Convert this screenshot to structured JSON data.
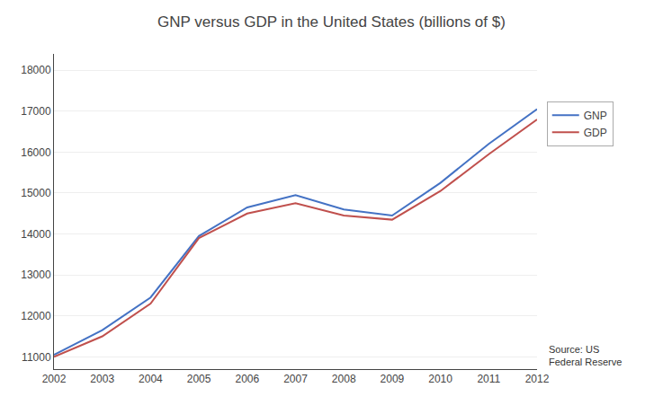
{
  "chart_data": {
    "type": "line",
    "title": "GNP versus GDP in the United States (billions of $)",
    "x": [
      2002,
      2003,
      2004,
      2005,
      2006,
      2007,
      2008,
      2009,
      2010,
      2011,
      2012
    ],
    "series": [
      {
        "name": "GNP",
        "color": "#4472C4",
        "values": [
          11050,
          11650,
          12450,
          13950,
          14650,
          14950,
          14600,
          14450,
          15250,
          16200,
          17050
        ]
      },
      {
        "name": "GDP",
        "color": "#C0504D",
        "values": [
          11000,
          11500,
          12300,
          13900,
          14500,
          14750,
          14450,
          14350,
          15050,
          15950,
          16800
        ]
      }
    ],
    "xlim": [
      2002,
      2012
    ],
    "xticks": [
      2002,
      2003,
      2004,
      2005,
      2006,
      2007,
      2008,
      2009,
      2010,
      2011,
      2012
    ],
    "ylim": [
      10700,
      18400
    ],
    "yticks": [
      11000,
      12000,
      13000,
      14000,
      15000,
      16000,
      17000,
      18000
    ],
    "grid": "y",
    "legend": "right",
    "annotations": [
      "Source: US\nFederal Reserve"
    ]
  }
}
